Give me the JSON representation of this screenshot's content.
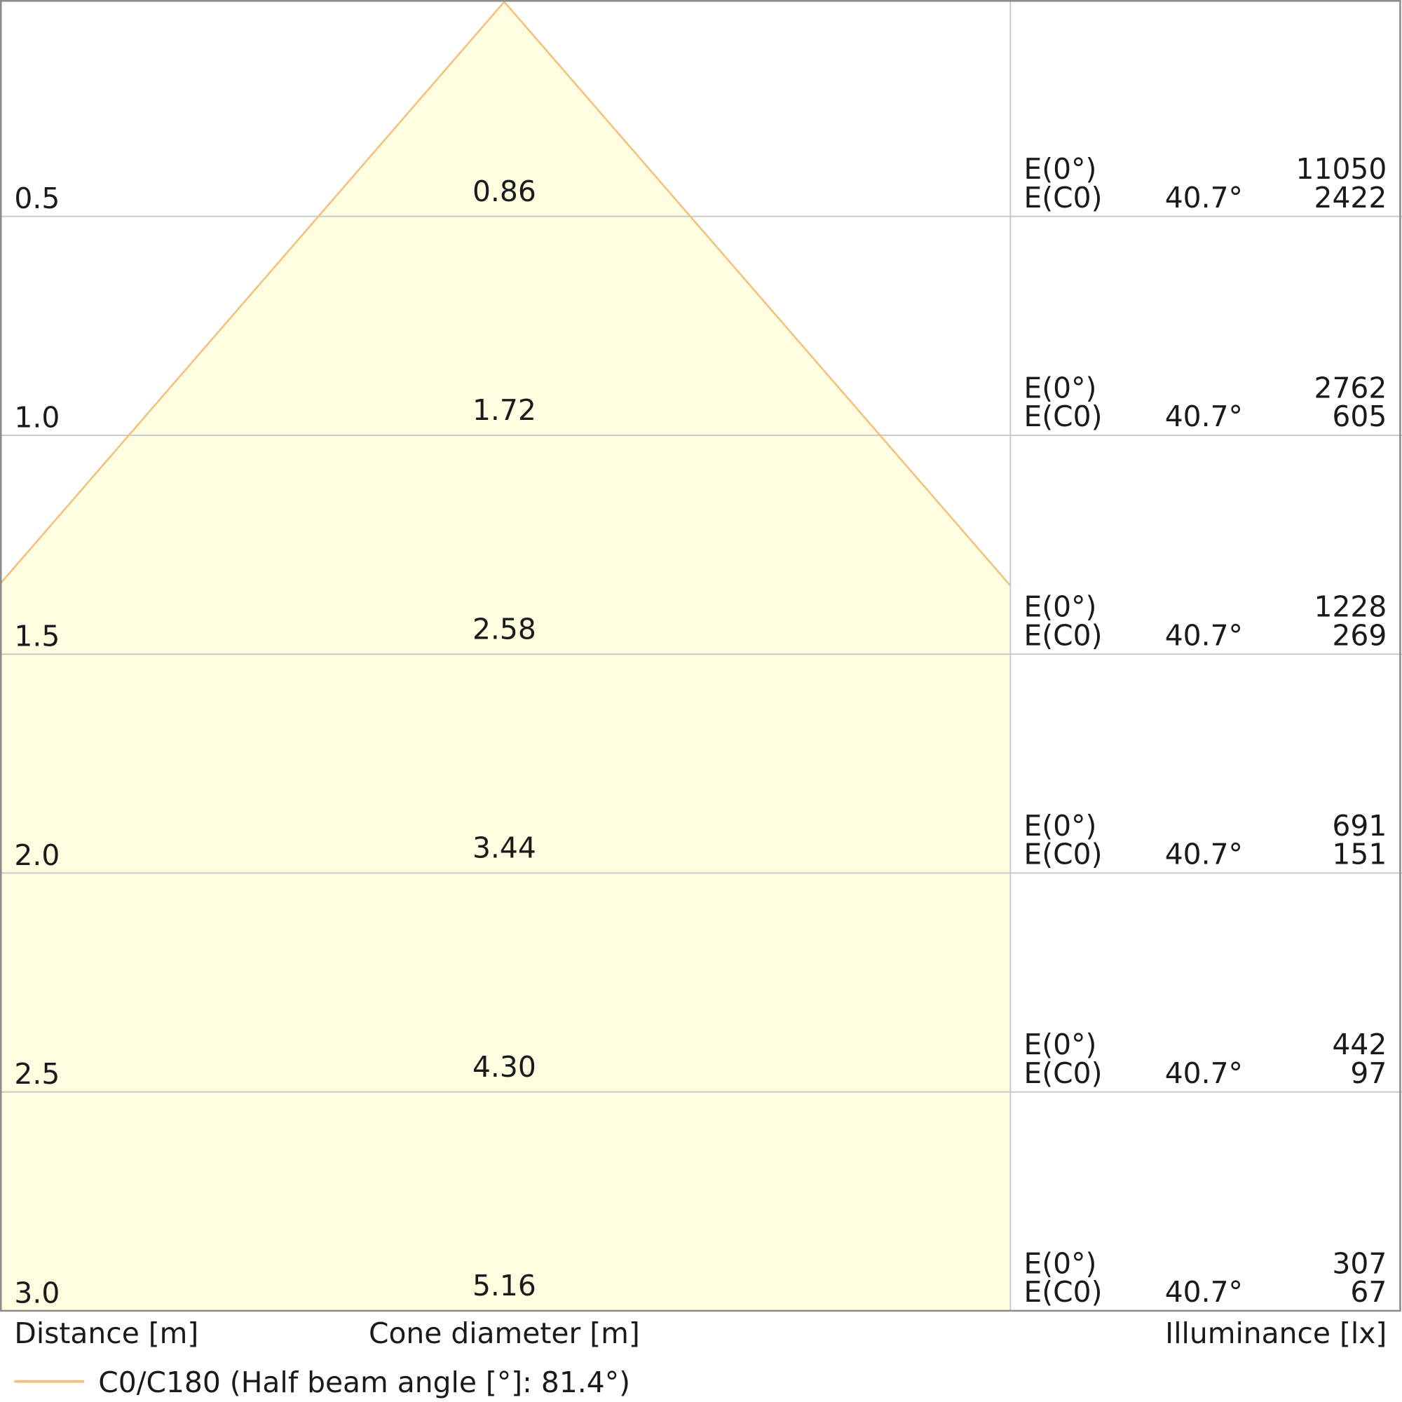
{
  "rows": [
    {
      "distance": "0.5",
      "diameter": "0.86",
      "e0_label": "E(0°)",
      "ec0_label": "E(C0)",
      "angle": "40.7°",
      "e0": "11050",
      "ec0": "2422"
    },
    {
      "distance": "1.0",
      "diameter": "1.72",
      "e0_label": "E(0°)",
      "ec0_label": "E(C0)",
      "angle": "40.7°",
      "e0": "2762",
      "ec0": "605"
    },
    {
      "distance": "1.5",
      "diameter": "2.58",
      "e0_label": "E(0°)",
      "ec0_label": "E(C0)",
      "angle": "40.7°",
      "e0": "1228",
      "ec0": "269"
    },
    {
      "distance": "2.0",
      "diameter": "3.44",
      "e0_label": "E(0°)",
      "ec0_label": "E(C0)",
      "angle": "40.7°",
      "e0": "691",
      "ec0": "151"
    },
    {
      "distance": "2.5",
      "diameter": "4.30",
      "e0_label": "E(0°)",
      "ec0_label": "E(C0)",
      "angle": "40.7°",
      "e0": "442",
      "ec0": "97"
    },
    {
      "distance": "3.0",
      "diameter": "5.16",
      "e0_label": "E(0°)",
      "ec0_label": "E(C0)",
      "angle": "40.7°",
      "e0": "307",
      "ec0": "67"
    }
  ],
  "axis_labels": {
    "distance": "Distance [m]",
    "diameter": "Cone diameter [m]",
    "illuminance": "Illuminance [lx]"
  },
  "legend": {
    "label": "C0/C180 (Half beam angle [°]: 81.4°)"
  }
}
